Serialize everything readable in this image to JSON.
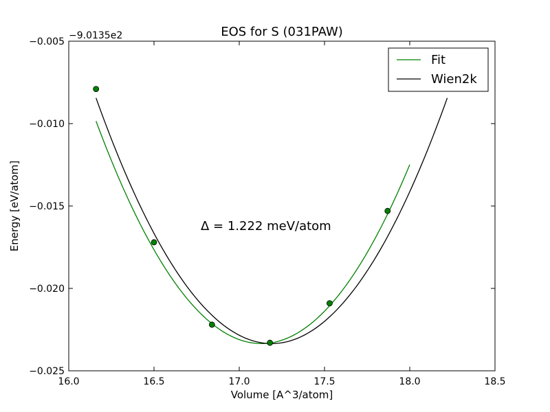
{
  "chart_data": {
    "type": "line",
    "title": "EOS for S (031PAW)",
    "xlabel": "Volume [A^3/atom]",
    "ylabel": "Energy [eV/atom]",
    "y_offset_label": "−9.0135e2",
    "annotation": "Δ = 1.222 meV/atom",
    "xlim": [
      16.0,
      18.5
    ],
    "ylim": [
      -0.025,
      -0.005
    ],
    "x_ticks": [
      "16.0",
      "16.5",
      "17.0",
      "17.5",
      "18.0",
      "18.5"
    ],
    "x_tick_values": [
      16.0,
      16.5,
      17.0,
      17.5,
      18.0,
      18.5
    ],
    "y_ticks": [
      "−0.005",
      "−0.010",
      "−0.015",
      "−0.020",
      "−0.025"
    ],
    "y_tick_values": [
      -0.005,
      -0.01,
      -0.015,
      -0.02,
      -0.025
    ],
    "legend_position": "top-right",
    "grid": false,
    "series": [
      {
        "name": "Fit",
        "color": "#008000",
        "kind": "parabola",
        "vertex": [
          17.13,
          -0.02335
        ],
        "curvature": 0.01435,
        "x_range": [
          16.16,
          18.0
        ]
      },
      {
        "name": "Wien2k",
        "color": "#000000",
        "kind": "parabola",
        "vertex": [
          17.19,
          -0.02335
        ],
        "curvature": 0.01405,
        "x_range": [
          16.16,
          18.22
        ]
      }
    ],
    "points": {
      "color": "#008000",
      "x": [
        16.16,
        16.5,
        16.84,
        17.18,
        17.53,
        17.87
      ],
      "y": [
        -0.0079,
        -0.0172,
        -0.0222,
        -0.0233,
        -0.0209,
        -0.0153
      ]
    }
  }
}
